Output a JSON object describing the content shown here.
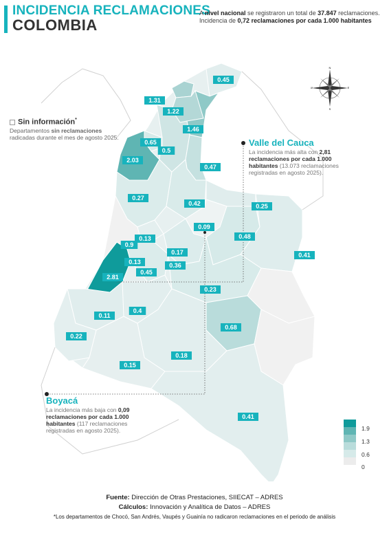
{
  "header": {
    "title_line1": "INCIDENCIA RECLAMACIONES",
    "title_line2": "COLOMBIA",
    "national_line1_pre": "A ",
    "national_line1_bold": "nivel nacional",
    "national_line1_mid": " se registraron un total de ",
    "national_line1_num": "37.847",
    "national_line1_post": " reclamaciones.",
    "national_line2_pre": "Incidencia de ",
    "national_line2_bold": "0,72 reclamaciones por cada 1.000 habitantes"
  },
  "sin_informacion": {
    "title": "Sin información",
    "sup": "*",
    "line1_pre": "Departamentos ",
    "line1_bold": "sin reclamaciones",
    "line2": "radicadas durante el mes de agosto 2025."
  },
  "valle": {
    "title": "Valle del Cauca",
    "text1": "La incidencia más alta con ",
    "text_bold": "2,81 reclamaciones por cada 1.000 habitantes",
    "text2": " (13.073 reclamaciones registradas en agosto 2025)."
  },
  "boyaca": {
    "title": "Boyacá",
    "text1": "La incidencia más baja con ",
    "text_bold": "0,09 reclamaciones por cada 1.000 habitantes",
    "text2": " (117 reclamaciones registradas en agosto 2025)."
  },
  "departments": [
    {
      "value": "0.45"
    },
    {
      "value": "1.31"
    },
    {
      "value": "1.22"
    },
    {
      "value": "1.46"
    },
    {
      "value": "0.65"
    },
    {
      "value": "0.5"
    },
    {
      "value": "2.03"
    },
    {
      "value": "0.47"
    },
    {
      "value": "0.27"
    },
    {
      "value": "0.42"
    },
    {
      "value": "0.25"
    },
    {
      "value": "0.09"
    },
    {
      "value": "0.48"
    },
    {
      "value": "0.13"
    },
    {
      "value": "0.9"
    },
    {
      "value": "0.17"
    },
    {
      "value": "0.41"
    },
    {
      "value": "0.13"
    },
    {
      "value": "0.36"
    },
    {
      "value": "0.45"
    },
    {
      "value": "2.81"
    },
    {
      "value": "0.23"
    },
    {
      "value": "0.4"
    },
    {
      "value": "0.11"
    },
    {
      "value": "0.68"
    },
    {
      "value": "0.22"
    },
    {
      "value": "0.18"
    },
    {
      "value": "0.15"
    },
    {
      "value": "0.41"
    }
  ],
  "legend": {
    "colors": [
      "#0f9b9b",
      "#5fb5b3",
      "#8fc9c7",
      "#b9dcdb",
      "#d6eae9",
      "#ececec"
    ],
    "labels": [
      "1.9",
      "1.3",
      "0.6",
      "0"
    ]
  },
  "compass": {
    "n": "N",
    "s": "S",
    "e": "E",
    "w": "W"
  },
  "footer": {
    "fuente_label": "Fuente:",
    "fuente_text": " Dirección de Otras Prestaciones, SIIECAT – ADRES",
    "calculos_label": "Cálculos:",
    "calculos_text": " Innovación y Analítica de Datos – ADRES",
    "note": "*Los departamentos de Chocó, San Andrés, Vaupés y Guainía no radicaron reclamaciones en el periodo de análisis"
  },
  "colors": {
    "accent": "#17b3bd",
    "high": "#0f9b9b",
    "low": "#e6efef"
  }
}
